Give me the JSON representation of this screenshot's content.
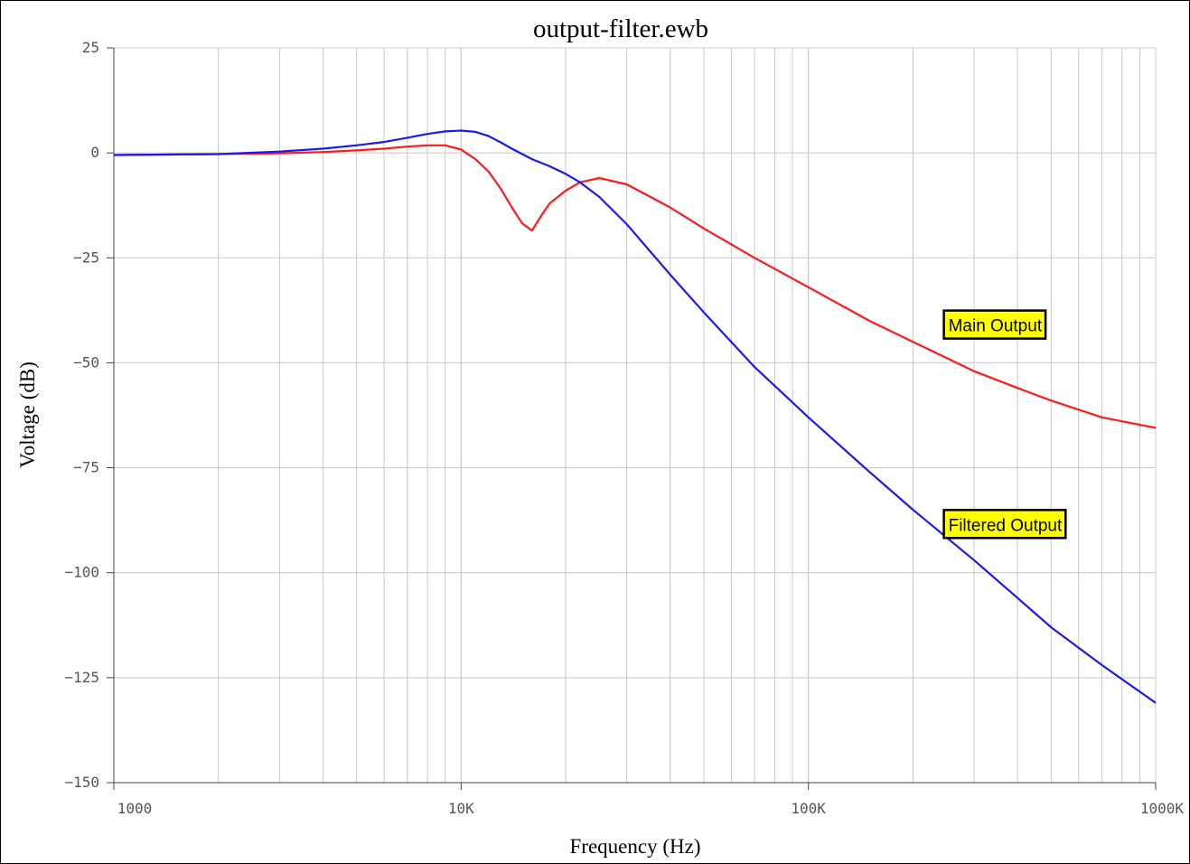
{
  "chart_data": {
    "type": "line",
    "title": "output-filter.ewb",
    "xlabel": "Frequency (Hz)",
    "ylabel": "Voltage (dB)",
    "xscale": "log",
    "xlim": [
      1000,
      1000000
    ],
    "ylim": [
      -150,
      25
    ],
    "grid": true,
    "x_ticks": [
      {
        "value": 1000,
        "label": "1000"
      },
      {
        "value": 10000,
        "label": "10K"
      },
      {
        "value": 100000,
        "label": "100K"
      },
      {
        "value": 1000000,
        "label": "1000K"
      }
    ],
    "y_ticks": [
      {
        "value": 25,
        "label": "25"
      },
      {
        "value": 0,
        "label": "0"
      },
      {
        "value": -25,
        "label": "−25"
      },
      {
        "value": -50,
        "label": "−50"
      },
      {
        "value": -75,
        "label": "−75"
      },
      {
        "value": -100,
        "label": "−100"
      },
      {
        "value": -125,
        "label": "−125"
      },
      {
        "value": -150,
        "label": "−150"
      }
    ],
    "series": [
      {
        "name": "Main Output",
        "color": "#ff1a1a",
        "x": [
          1000,
          2000,
          3000,
          4000,
          5000,
          6000,
          7000,
          8000,
          9000,
          10000,
          11000,
          12000,
          13000,
          14000,
          15000,
          16000,
          17000,
          18000,
          20000,
          22000,
          25000,
          30000,
          40000,
          50000,
          70000,
          100000,
          150000,
          200000,
          300000,
          400000,
          500000,
          700000,
          1000000
        ],
        "values": [
          -0.5,
          -0.3,
          -0.1,
          0.2,
          0.6,
          1.0,
          1.5,
          1.8,
          1.8,
          0.8,
          -1.5,
          -4.5,
          -8.5,
          -13,
          -16.8,
          -18.5,
          -15,
          -12,
          -9,
          -7,
          -6,
          -7.5,
          -13,
          -18,
          -25,
          -32,
          -40,
          -45,
          -52,
          -56,
          -59,
          -63,
          -65.5
        ]
      },
      {
        "name": "Filtered Output",
        "color": "#1a1aee",
        "x": [
          1000,
          2000,
          3000,
          4000,
          5000,
          6000,
          7000,
          8000,
          9000,
          10000,
          11000,
          12000,
          13000,
          14000,
          15000,
          16000,
          18000,
          20000,
          22000,
          25000,
          30000,
          40000,
          50000,
          70000,
          100000,
          150000,
          200000,
          300000,
          400000,
          500000,
          700000,
          1000000
        ],
        "values": [
          -0.5,
          -0.3,
          0.3,
          1.0,
          1.8,
          2.6,
          3.6,
          4.5,
          5.1,
          5.3,
          5.0,
          4.0,
          2.5,
          1.0,
          -0.3,
          -1.5,
          -3.2,
          -5,
          -7,
          -10.5,
          -17,
          -29,
          -38,
          -51,
          -63,
          -76,
          -85,
          -97,
          -106,
          -113,
          -122,
          -131
        ]
      }
    ],
    "annotations": [
      {
        "text": "Main Output",
        "x": 250000,
        "y": -41
      },
      {
        "text": "Filtered Output",
        "x": 250000,
        "y": -88.5
      }
    ]
  }
}
